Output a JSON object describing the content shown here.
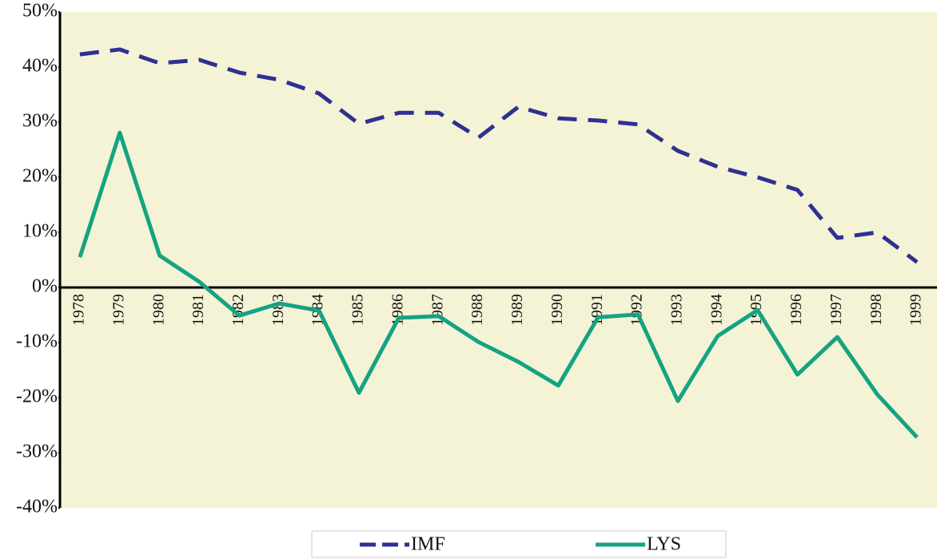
{
  "chart_data": {
    "type": "line",
    "categories": [
      "1978",
      "1979",
      "1980",
      "1981",
      "1982",
      "1983",
      "1984",
      "1985",
      "1986",
      "1987",
      "1988",
      "1989",
      "1990",
      "1991",
      "1992",
      "1993",
      "1994",
      "1995",
      "1996",
      "1997",
      "1998",
      "1999"
    ],
    "series": [
      {
        "name": "IMF",
        "color": "#2e3192",
        "dashed": true,
        "values": [
          42.3,
          43.2,
          40.7,
          41.3,
          39,
          37.7,
          35.2,
          29.7,
          31.7,
          31.7,
          27.2,
          32.8,
          30.7,
          30.3,
          29.6,
          24.8,
          21.9,
          20,
          17.7,
          9,
          10,
          4.6
        ]
      },
      {
        "name": "LYS",
        "color": "#14a383",
        "dashed": false,
        "values": [
          5.5,
          28.1,
          5.8,
          1,
          -5.1,
          -2.9,
          -4.2,
          -19.1,
          -5.5,
          -5.2,
          -9.9,
          -13.5,
          -17.8,
          -5.4,
          -4.9,
          -20.6,
          -8.8,
          -4.1,
          -15.8,
          -9,
          -19.4,
          -27.2
        ]
      }
    ],
    "ylim": [
      -40,
      50
    ],
    "yticks": [
      {
        "value": -40,
        "label": "-40%"
      },
      {
        "value": -30,
        "label": "-30%"
      },
      {
        "value": -20,
        "label": "-20%"
      },
      {
        "value": -10,
        "label": "-10%"
      },
      {
        "value": 0,
        "label": "0%"
      },
      {
        "value": 10,
        "label": "10%"
      },
      {
        "value": 20,
        "label": "20%"
      },
      {
        "value": 30,
        "label": "30%"
      },
      {
        "value": 40,
        "label": "40%"
      },
      {
        "value": 50,
        "label": "50%"
      }
    ],
    "grid": false,
    "legend": "bottom",
    "background": "#f5f3d6"
  }
}
